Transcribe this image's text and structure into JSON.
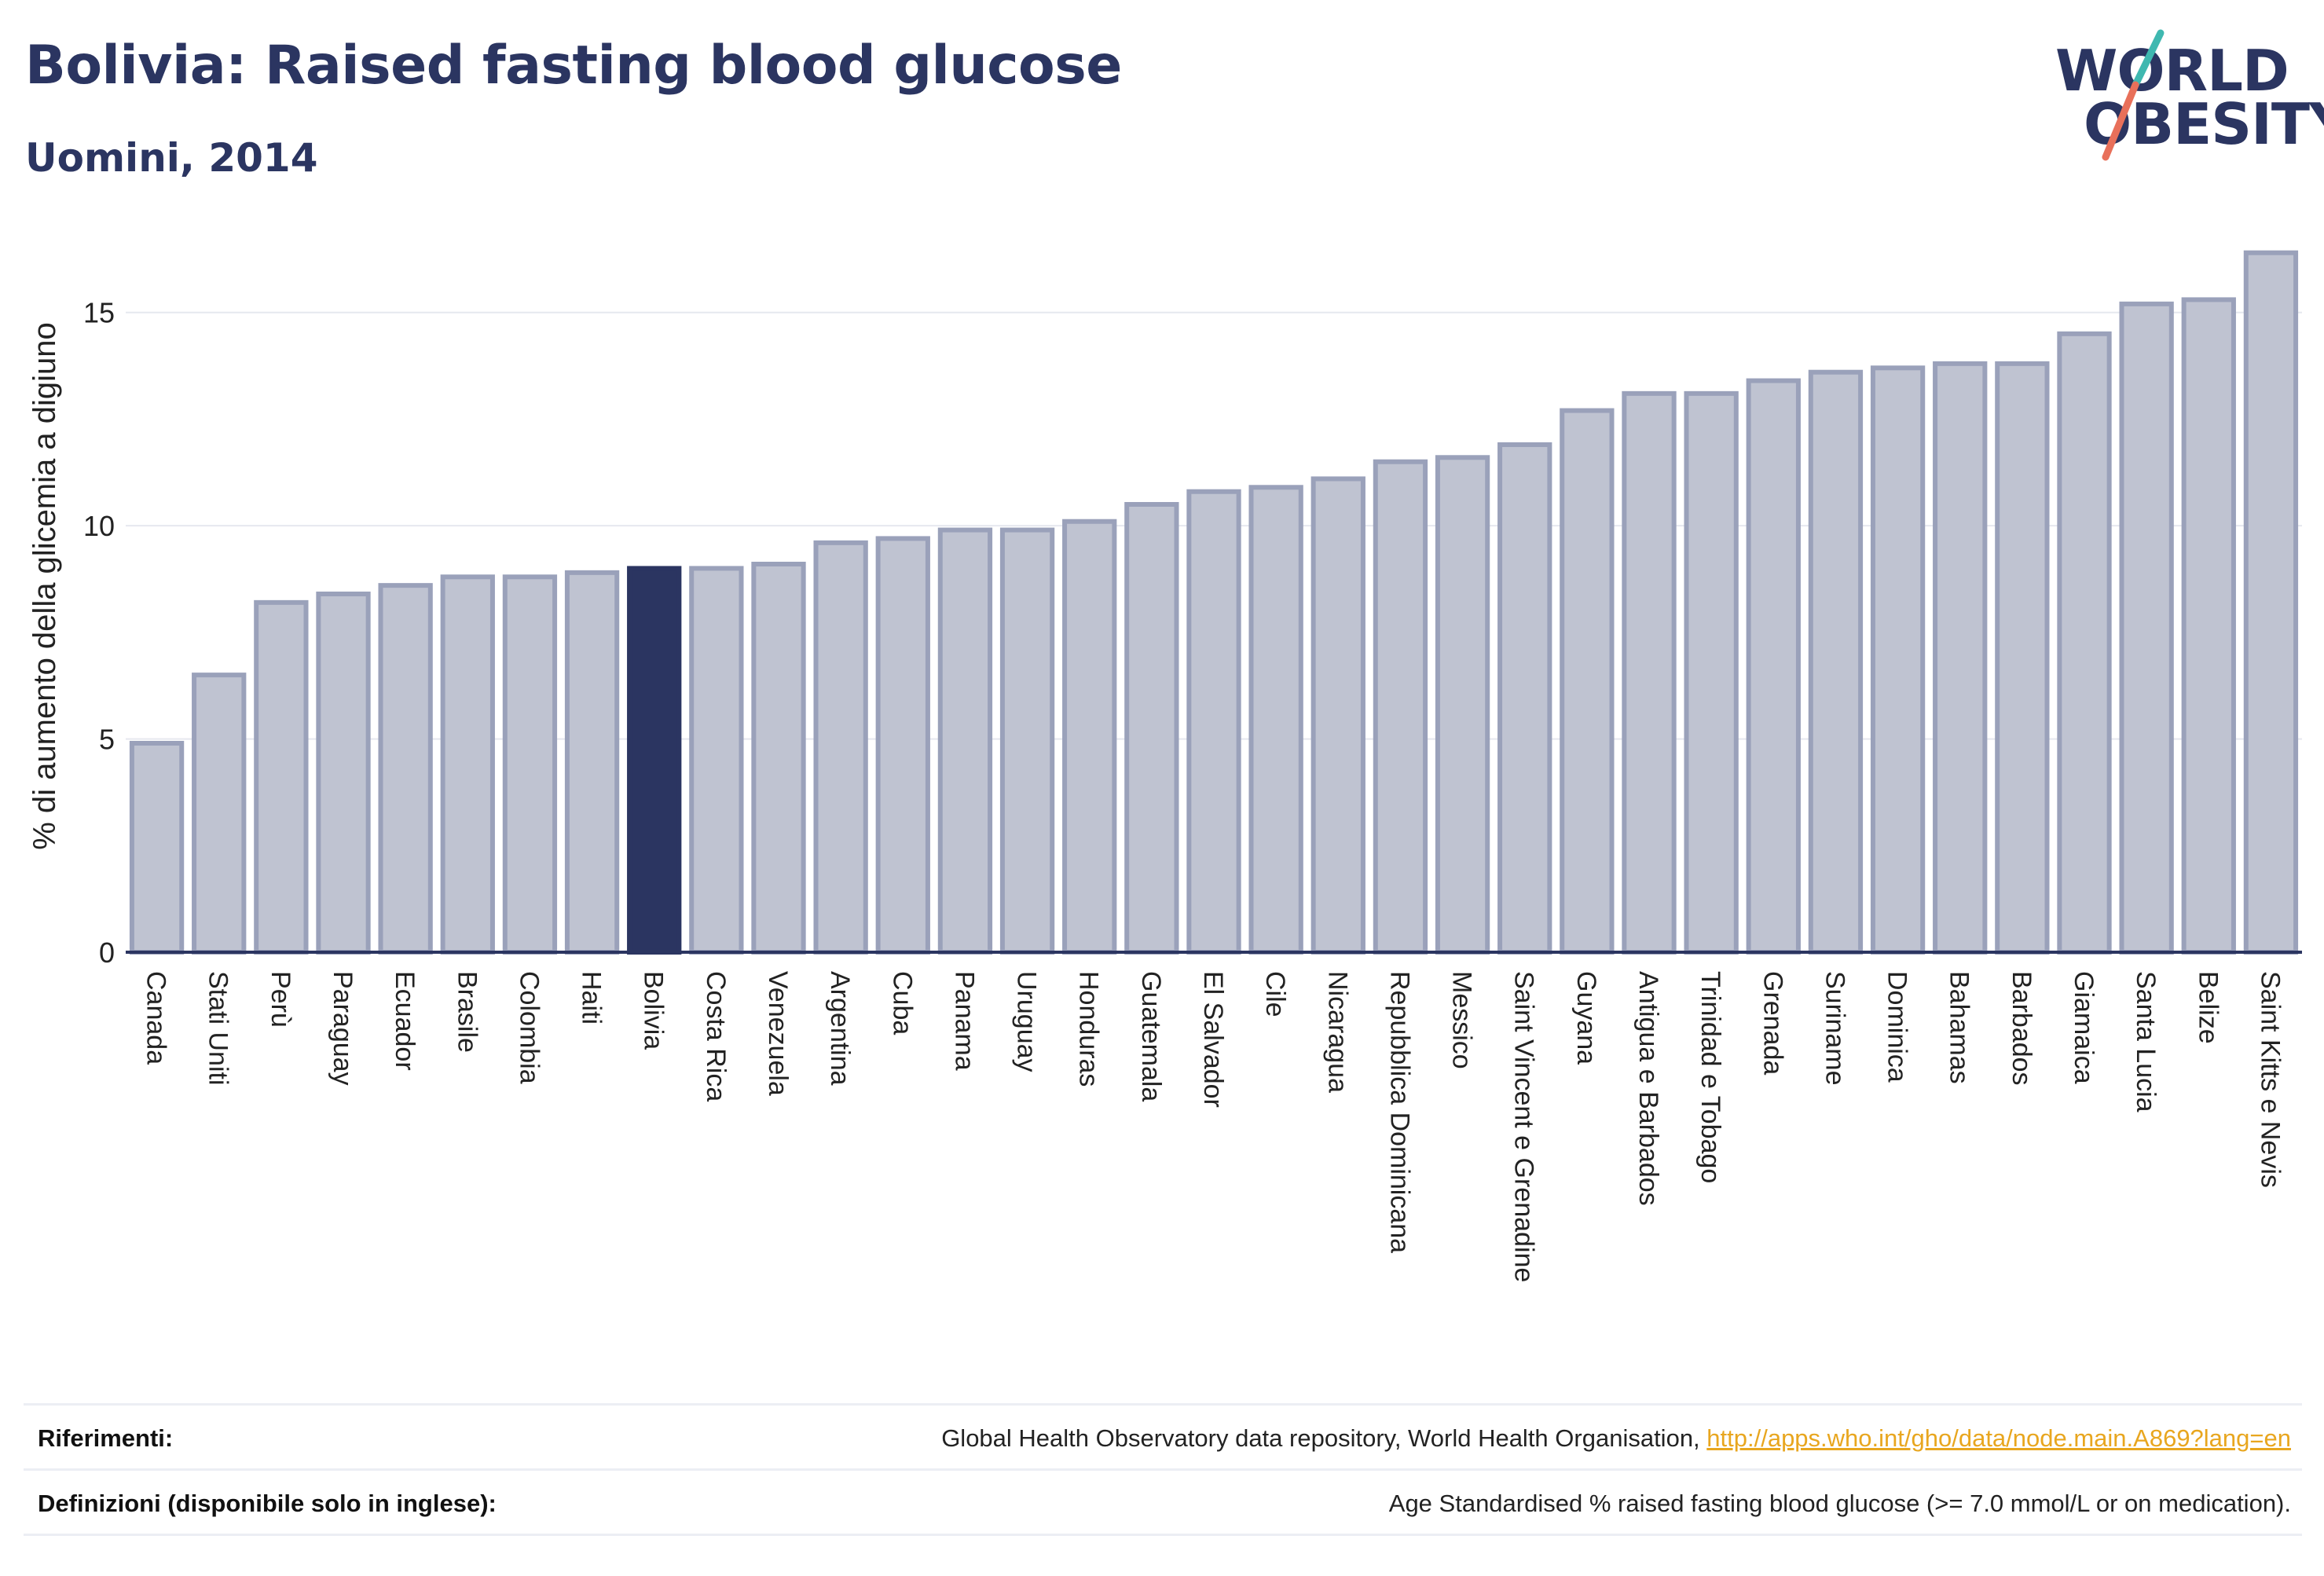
{
  "header": {
    "title": "Bolivia: Raised fasting blood glucose",
    "subtitle": "Uomini, 2014"
  },
  "logo": {
    "line1": "WORLD",
    "line2": "OBESITY"
  },
  "chart_data": {
    "type": "bar",
    "ylabel": "% di aumento della glicemia a digiuno",
    "ylim": [
      0,
      16.8
    ],
    "yticks": [
      0,
      5,
      10,
      15
    ],
    "grid": true,
    "highlight": "Bolivia",
    "colors": {
      "bar": "#bfc3d1",
      "bar_border": "#9aa1ba",
      "highlight": "#2b3561",
      "grid": "#e6e8ef",
      "axis": "#2b3561"
    },
    "categories": [
      "Canada",
      "Stati Uniti",
      "Perù",
      "Paraguay",
      "Ecuador",
      "Brasile",
      "Colombia",
      "Haiti",
      "Bolivia",
      "Costa Rica",
      "Venezuela",
      "Argentina",
      "Cuba",
      "Panama",
      "Uruguay",
      "Honduras",
      "Guatemala",
      "El Salvador",
      "Cile",
      "Nicaragua",
      "Repubblica Dominicana",
      "Messico",
      "Saint Vincent e Grenadine",
      "Guyana",
      "Antigua e Barbados",
      "Trinidad e Tobago",
      "Grenada",
      "Suriname",
      "Dominica",
      "Bahamas",
      "Barbados",
      "Giamaica",
      "Santa Lucia",
      "Belize",
      "Saint Kitts e Nevis"
    ],
    "values": [
      4.9,
      6.5,
      8.2,
      8.4,
      8.6,
      8.8,
      8.8,
      8.9,
      9.0,
      9.0,
      9.1,
      9.6,
      9.7,
      9.9,
      9.9,
      10.1,
      10.5,
      10.8,
      10.9,
      11.1,
      11.5,
      11.6,
      11.9,
      12.7,
      13.1,
      13.1,
      13.4,
      13.6,
      13.7,
      13.8,
      13.8,
      14.5,
      15.2,
      15.3,
      16.4
    ]
  },
  "footer": {
    "references_label": "Riferimenti:",
    "references_text": "Global Health Observatory data repository, World Health Organisation, ",
    "references_link": "http://apps.who.int/gho/data/node.main.A869?lang=en",
    "definitions_label": "Definizioni (disponibile solo in inglese):",
    "definitions_text": "Age Standardised % raised fasting blood glucose (>= 7.0 mmol/L or on medication)."
  }
}
